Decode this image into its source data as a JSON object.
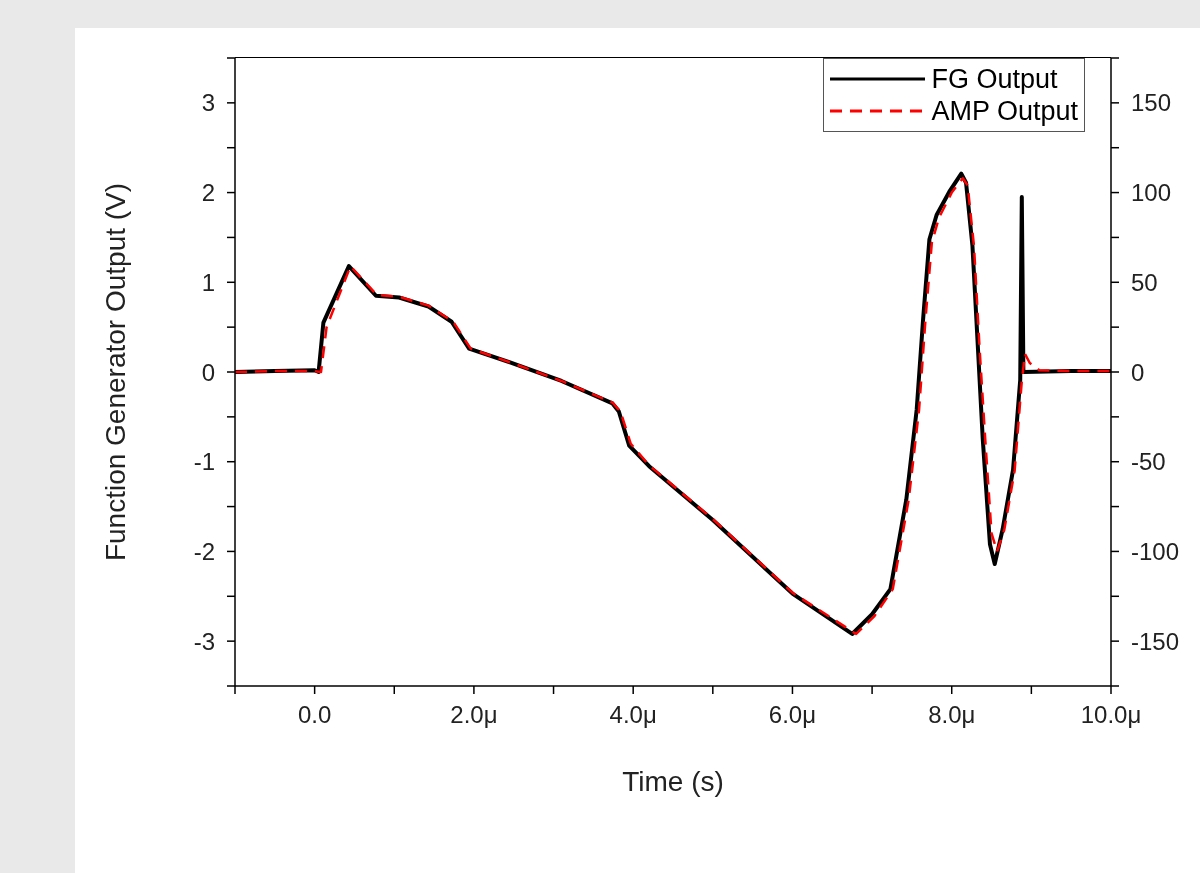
{
  "chart_data": {
    "type": "line",
    "xlabel": "Time (s)",
    "ylabel": "Function Generator Output (V)",
    "xlim": [
      -1,
      10
    ],
    "xticks": [
      {
        "value": -1,
        "label": null
      },
      {
        "value": 0,
        "label": "0.0"
      },
      {
        "value": 1,
        "label": null
      },
      {
        "value": 2,
        "label": "2.0μ"
      },
      {
        "value": 3,
        "label": null
      },
      {
        "value": 4,
        "label": "4.0μ"
      },
      {
        "value": 5,
        "label": null
      },
      {
        "value": 6,
        "label": "6.0μ"
      },
      {
        "value": 7,
        "label": null
      },
      {
        "value": 8,
        "label": "8.0μ"
      },
      {
        "value": 9,
        "label": null
      },
      {
        "value": 10,
        "label": "10.0μ"
      }
    ],
    "ylim": [
      -3.5,
      3.5
    ],
    "yticks": [
      {
        "value": -3.5,
        "label": null
      },
      -3,
      {
        "value": -2.5,
        "label": null
      },
      -2,
      {
        "value": -1.5,
        "label": null
      },
      -1,
      {
        "value": -0.5,
        "label": null
      },
      0,
      {
        "value": 0.5,
        "label": null
      },
      1,
      {
        "value": 1.5,
        "label": null
      },
      2,
      {
        "value": 2.5,
        "label": null
      },
      3,
      {
        "value": 3.5,
        "label": null
      }
    ],
    "y2lim": [
      -175,
      175
    ],
    "y2ticks": [
      {
        "value": -175,
        "label": null
      },
      -150,
      {
        "value": -125,
        "label": null
      },
      -100,
      {
        "value": -75,
        "label": null
      },
      -50,
      {
        "value": -25,
        "label": null
      },
      0,
      {
        "value": 25,
        "label": null
      },
      50,
      {
        "value": 75,
        "label": null
      },
      100,
      {
        "value": 125,
        "label": null
      },
      150,
      {
        "value": 175,
        "label": null
      }
    ],
    "grid": false,
    "legend": "top right",
    "marker": "none",
    "series": [
      {
        "name": "FG Output",
        "color": "#000000",
        "line_style": "solid",
        "x": [
          -1,
          -0.5,
          0,
          0.05,
          0.11,
          0.43,
          0.77,
          1.06,
          1.43,
          1.72,
          1.94,
          2.48,
          3.1,
          3.74,
          3.82,
          3.95,
          4.2,
          5,
          6,
          6.75,
          7,
          7.23,
          7.43,
          7.56,
          7.64,
          7.72,
          7.81,
          7.97,
          8.12,
          8.18,
          8.26,
          8.33,
          8.39,
          8.48,
          8.54,
          8.64,
          8.77,
          8.86,
          8.88,
          8.9,
          9.5,
          10
        ],
        "values": [
          0,
          0.01,
          0.02,
          0,
          0.55,
          1.18,
          0.85,
          0.83,
          0.73,
          0.56,
          0.26,
          0.1,
          -0.1,
          -0.35,
          -0.44,
          -0.82,
          -1.05,
          -1.65,
          -2.47,
          -2.92,
          -2.7,
          -2.42,
          -1.42,
          -0.42,
          0.58,
          1.48,
          1.75,
          2.01,
          2.21,
          2.11,
          1.41,
          0.25,
          -0.75,
          -1.92,
          -2.14,
          -1.75,
          -1.09,
          -0.09,
          1.95,
          0,
          0.01,
          0.01
        ]
      },
      {
        "name": "AMP Output",
        "color": "#ff0000",
        "line_style": "dashed",
        "axis": "y2",
        "x": [
          -1,
          -0.5,
          0,
          0.08,
          0.15,
          0.45,
          0.78,
          1.06,
          1.43,
          1.74,
          1.96,
          2.48,
          3.1,
          3.74,
          3.84,
          3.97,
          4.2,
          5,
          6,
          6.8,
          7.03,
          7.26,
          7.46,
          7.59,
          7.67,
          7.75,
          7.84,
          8,
          8.14,
          8.2,
          8.28,
          8.35,
          8.42,
          8.5,
          8.57,
          8.66,
          8.79,
          8.88,
          8.92,
          8.98,
          9.1,
          9.5,
          10
        ],
        "values": [
          0,
          0.5,
          0.5,
          0,
          25,
          59,
          43,
          42,
          37,
          28,
          13,
          5,
          -5,
          -17,
          -22,
          -40,
          -52,
          -82,
          -123,
          -146,
          -136,
          -121,
          -71,
          -21,
          29,
          72,
          86,
          100,
          108,
          104,
          70,
          13,
          -37,
          -90,
          -100,
          -88,
          -55,
          -5,
          10,
          5,
          1,
          0.5,
          0.5
        ]
      }
    ]
  }
}
